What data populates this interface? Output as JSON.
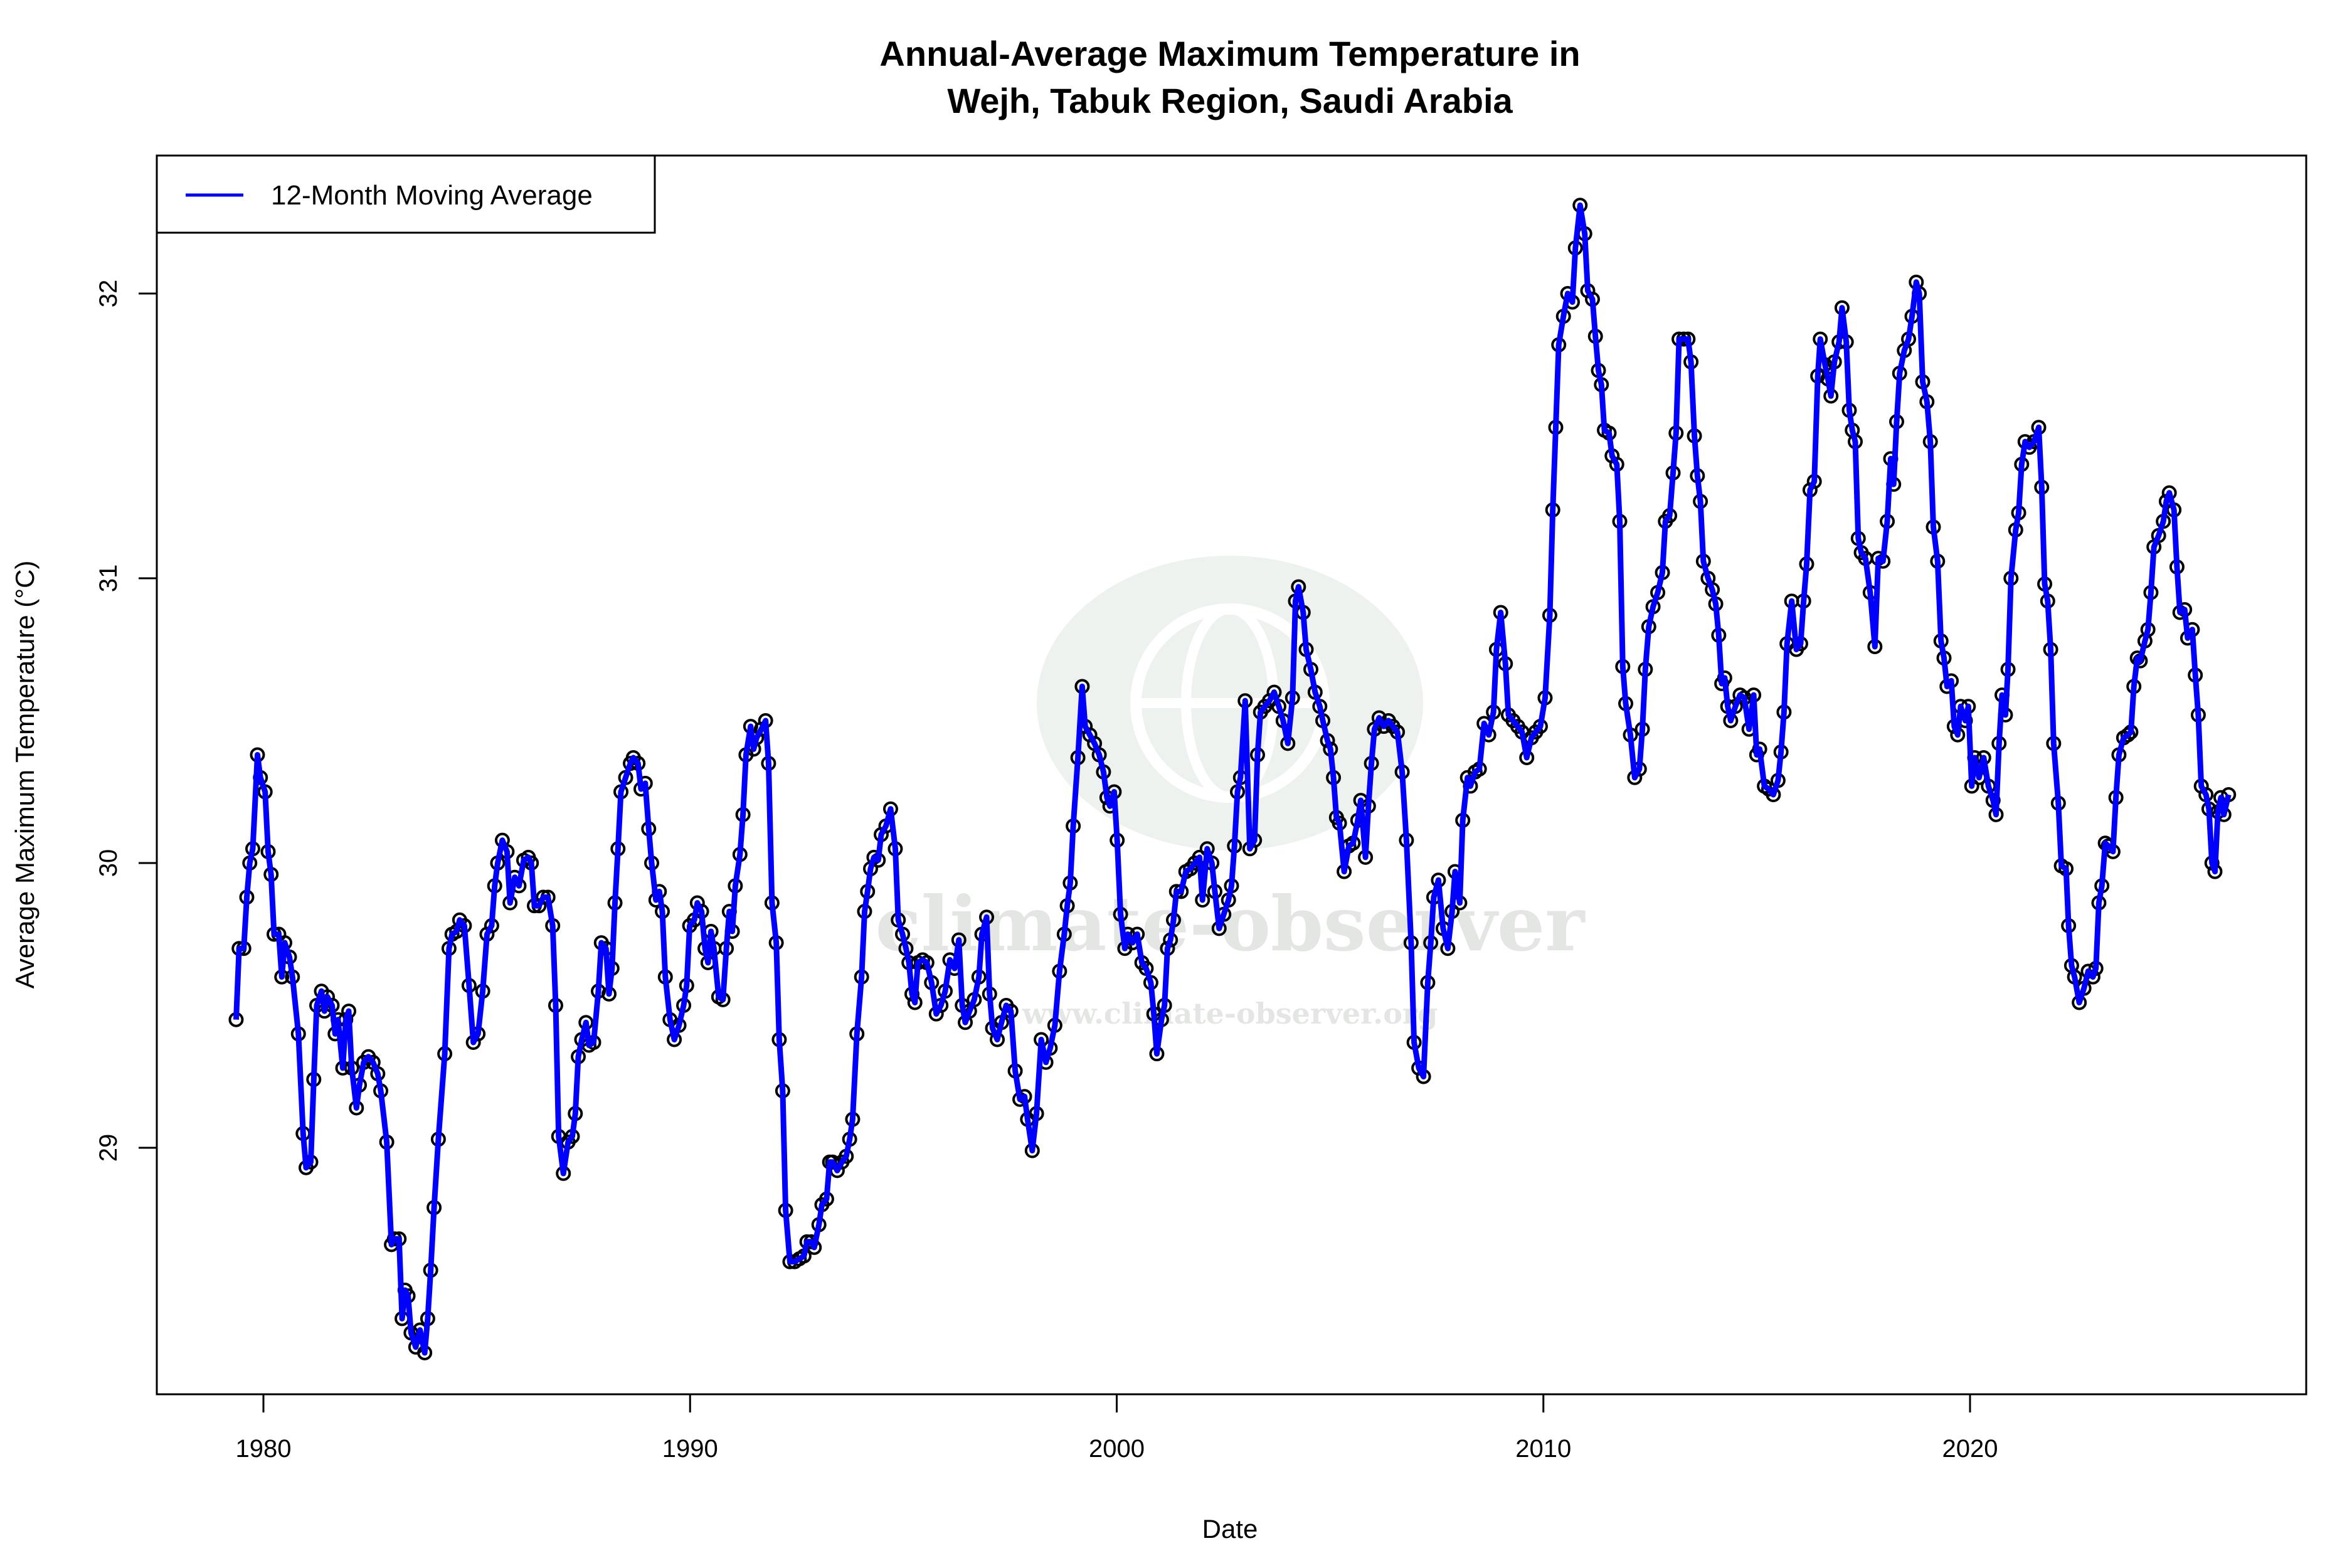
{
  "chart_data": {
    "type": "line",
    "title_line1": "Annual-Average Maximum Temperature in",
    "title_line2": "Wejh, Tabuk Region, Saudi Arabia",
    "xlabel": "Date",
    "ylabel": "Average Maximum Temperature (°C)",
    "xlim": [
      1977.5,
      2027.9
    ],
    "ylim": [
      28.1,
      32.5
    ],
    "x_ticks": [
      1980,
      1990,
      2000,
      2010,
      2020
    ],
    "y_ticks": [
      29,
      30,
      31,
      32
    ],
    "grid": false,
    "legend": {
      "position": "top-left",
      "entries": [
        "12-Month Moving Average"
      ]
    },
    "series": [
      {
        "name": "12-Month Moving Average",
        "color": "#0000ff",
        "marker": "open-circle",
        "x": [
          1979.36,
          1979.43,
          1979.54,
          1979.61,
          1979.68,
          1979.75,
          1979.86,
          1979.93,
          1980.04,
          1980.11,
          1980.18,
          1980.25,
          1980.36,
          1980.43,
          1980.5,
          1980.61,
          1980.68,
          1980.82,
          1980.93,
          1981.0,
          1981.11,
          1981.18,
          1981.25,
          1981.36,
          1981.43,
          1981.5,
          1981.61,
          1981.68,
          1981.75,
          1981.86,
          1981.93,
          1982.0,
          1982.07,
          1982.18,
          1982.25,
          1982.35,
          1982.46,
          1982.57,
          1982.68,
          1982.75,
          1982.89,
          1983.0,
          1983.07,
          1983.18,
          1983.25,
          1983.32,
          1983.39,
          1983.46,
          1983.57,
          1983.67,
          1983.78,
          1983.85,
          1983.92,
          1984.0,
          1984.1,
          1984.25,
          1984.35,
          1984.42,
          1984.53,
          1984.6,
          1984.71,
          1984.82,
          1984.92,
          1985.03,
          1985.14,
          1985.24,
          1985.35,
          1985.42,
          1985.49,
          1985.6,
          1985.71,
          1985.78,
          1985.89,
          1985.99,
          1986.1,
          1986.21,
          1986.28,
          1986.35,
          1986.46,
          1986.56,
          1986.67,
          1986.78,
          1986.85,
          1986.92,
          1987.03,
          1987.14,
          1987.24,
          1987.31,
          1987.38,
          1987.46,
          1987.56,
          1987.63,
          1987.74,
          1987.85,
          1987.92,
          1988.03,
          1988.1,
          1988.17,
          1988.24,
          1988.31,
          1988.38,
          1988.49,
          1988.6,
          1988.67,
          1988.78,
          1988.85,
          1988.95,
          1989.03,
          1989.1,
          1989.2,
          1989.28,
          1989.35,
          1989.42,
          1989.53,
          1989.63,
          1989.74,
          1989.85,
          1989.92,
          1989.99,
          1990.1,
          1990.17,
          1990.27,
          1990.35,
          1990.42,
          1990.49,
          1990.56,
          1990.67,
          1990.77,
          1990.85,
          1990.92,
          1990.99,
          1991.06,
          1991.17,
          1991.24,
          1991.31,
          1991.42,
          1991.49,
          1991.56,
          1991.67,
          1991.77,
          1991.84,
          1991.92,
          1992.02,
          1992.09,
          1992.17,
          1992.24,
          1992.34,
          1992.45,
          1992.56,
          1992.67,
          1992.74,
          1992.84,
          1992.91,
          1993.02,
          1993.09,
          1993.2,
          1993.27,
          1993.34,
          1993.45,
          1993.56,
          1993.66,
          1993.74,
          1993.81,
          1993.91,
          1994.02,
          1994.09,
          1994.16,
          1994.23,
          1994.31,
          1994.41,
          1994.48,
          1994.59,
          1994.7,
          1994.81,
          1994.88,
          1994.98,
          1995.06,
          1995.13,
          1995.2,
          1995.27,
          1995.34,
          1995.45,
          1995.55,
          1995.66,
          1995.77,
          1995.88,
          1995.98,
          1996.09,
          1996.2,
          1996.3,
          1996.38,
          1996.45,
          1996.55,
          1996.66,
          1996.77,
          1996.84,
          1996.95,
          1997.02,
          1997.09,
          1997.2,
          1997.3,
          1997.41,
          1997.52,
          1997.62,
          1997.73,
          1997.84,
          1997.91,
          1998.02,
          1998.12,
          1998.23,
          1998.34,
          1998.44,
          1998.55,
          1998.66,
          1998.77,
          1998.84,
          1998.91,
          1998.98,
          1999.09,
          1999.19,
          1999.26,
          1999.37,
          1999.48,
          1999.59,
          1999.69,
          1999.77,
          1999.84,
          1999.94,
          2000.01,
          2000.09,
          2000.19,
          2000.26,
          2000.37,
          2000.48,
          2000.59,
          2000.69,
          2000.8,
          2000.87,
          2000.94,
          2001.05,
          2001.12,
          2001.19,
          2001.26,
          2001.33,
          2001.4,
          2001.51,
          2001.62,
          2001.73,
          2001.83,
          2001.94,
          2002.01,
          2002.12,
          2002.23,
          2002.3,
          2002.4,
          2002.51,
          2002.62,
          2002.69,
          2002.76,
          2002.83,
          2002.9,
          2003.01,
          2003.12,
          2003.23,
          2003.3,
          2003.37,
          2003.47,
          2003.58,
          2003.69,
          2003.8,
          2003.9,
          2004.01,
          2004.12,
          2004.19,
          2004.26,
          2004.37,
          2004.44,
          2004.55,
          2004.65,
          2004.76,
          2004.83,
          2004.94,
          2005.01,
          2005.08,
          2005.15,
          2005.22,
          2005.33,
          2005.44,
          2005.54,
          2005.65,
          2005.72,
          2005.83,
          2005.9,
          2005.97,
          2006.04,
          2006.15,
          2006.26,
          2006.37,
          2006.47,
          2006.58,
          2006.69,
          2006.79,
          2006.9,
          2006.97,
          2007.08,
          2007.19,
          2007.29,
          2007.36,
          2007.43,
          2007.54,
          2007.65,
          2007.76,
          2007.86,
          2007.93,
          2008.04,
          2008.11,
          2008.22,
          2008.29,
          2008.4,
          2008.5,
          2008.61,
          2008.72,
          2008.83,
          2008.9,
          2009.0,
          2009.11,
          2009.18,
          2009.29,
          2009.4,
          2009.5,
          2009.61,
          2009.72,
          2009.82,
          2009.93,
          2010.04,
          2010.15,
          2010.22,
          2010.29,
          2010.36,
          2010.47,
          2010.57,
          2010.68,
          2010.75,
          2010.86,
          2010.97,
          2011.04,
          2011.15,
          2011.22,
          2011.29,
          2011.36,
          2011.43,
          2011.54,
          2011.61,
          2011.72,
          2011.79,
          2011.86,
          2011.93,
          2012.04,
          2012.14,
          2012.25,
          2012.32,
          2012.39,
          2012.47,
          2012.57,
          2012.68,
          2012.79,
          2012.86,
          2012.96,
          2013.04,
          2013.11,
          2013.18,
          2013.29,
          2013.39,
          2013.46,
          2013.54,
          2013.61,
          2013.68,
          2013.75,
          2013.86,
          2013.96,
          2014.04,
          2014.11,
          2014.18,
          2014.25,
          2014.32,
          2014.39,
          2014.5,
          2014.61,
          2014.71,
          2014.82,
          2014.93,
          2015.0,
          2015.07,
          2015.18,
          2015.28,
          2015.39,
          2015.5,
          2015.57,
          2015.64,
          2015.71,
          2015.82,
          2015.93,
          2016.03,
          2016.1,
          2016.17,
          2016.25,
          2016.35,
          2016.43,
          2016.49,
          2016.6,
          2016.67,
          2016.74,
          2016.82,
          2016.93,
          2017.0,
          2017.1,
          2017.17,
          2017.24,
          2017.31,
          2017.38,
          2017.45,
          2017.55,
          2017.66,
          2017.77,
          2017.85,
          2017.96,
          2018.06,
          2018.14,
          2018.21,
          2018.28,
          2018.35,
          2018.46,
          2018.56,
          2018.64,
          2018.74,
          2018.81,
          2018.89,
          2018.99,
          2019.07,
          2019.14,
          2019.24,
          2019.32,
          2019.39,
          2019.46,
          2019.56,
          2019.63,
          2019.71,
          2019.78,
          2019.89,
          2019.96,
          2020.04,
          2020.11,
          2020.21,
          2020.32,
          2020.43,
          2020.54,
          2020.61,
          2020.68,
          2020.75,
          2020.83,
          2020.89,
          2020.96,
          2021.07,
          2021.14,
          2021.21,
          2021.29,
          2021.39,
          2021.5,
          2021.61,
          2021.68,
          2021.75,
          2021.82,
          2021.89,
          2021.96,
          2022.07,
          2022.14,
          2022.25,
          2022.31,
          2022.38,
          2022.45,
          2022.56,
          2022.67,
          2022.77,
          2022.88,
          2022.95,
          2023.02,
          2023.09,
          2023.17,
          2023.24,
          2023.35,
          2023.42,
          2023.49,
          2023.6,
          2023.7,
          2023.77,
          2023.84,
          2023.92,
          2023.99,
          2024.1,
          2024.17,
          2024.24,
          2024.31,
          2024.42,
          2024.53,
          2024.6,
          2024.67,
          2024.78,
          2024.85,
          2024.92,
          2025.03,
          2025.1,
          2025.21,
          2025.28,
          2025.35,
          2025.42,
          2025.53,
          2025.6,
          2025.67,
          2025.74,
          2025.81,
          2025.88,
          2025.95,
          2026.06
        ],
        "y": [
          29.45,
          29.7,
          29.7,
          29.88,
          30.0,
          30.05,
          30.38,
          30.3,
          30.25,
          30.04,
          29.96,
          29.75,
          29.75,
          29.6,
          29.72,
          29.67,
          29.6,
          29.4,
          29.05,
          28.93,
          28.95,
          29.24,
          29.5,
          29.55,
          29.48,
          29.53,
          29.5,
          29.4,
          29.45,
          29.28,
          29.45,
          29.48,
          29.28,
          29.14,
          29.22,
          29.3,
          29.32,
          29.3,
          29.26,
          29.2,
          29.02,
          28.66,
          28.68,
          28.68,
          28.4,
          28.5,
          28.48,
          28.35,
          28.3,
          28.36,
          28.28,
          28.4,
          28.57,
          28.79,
          29.03,
          29.33,
          29.7,
          29.75,
          29.76,
          29.8,
          29.78,
          29.57,
          29.37,
          29.4,
          29.55,
          29.75,
          29.78,
          29.92,
          30.0,
          30.08,
          30.04,
          29.86,
          29.95,
          29.92,
          30.01,
          30.02,
          30.0,
          29.85,
          29.85,
          29.88,
          29.88,
          29.78,
          29.5,
          29.04,
          28.91,
          29.02,
          29.04,
          29.12,
          29.32,
          29.38,
          29.44,
          29.36,
          29.37,
          29.55,
          29.72,
          29.7,
          29.54,
          29.63,
          29.86,
          30.05,
          30.25,
          30.3,
          30.35,
          30.37,
          30.35,
          30.26,
          30.28,
          30.12,
          30.0,
          29.87,
          29.9,
          29.83,
          29.6,
          29.45,
          29.38,
          29.43,
          29.5,
          29.57,
          29.78,
          29.8,
          29.86,
          29.83,
          29.7,
          29.65,
          29.76,
          29.7,
          29.53,
          29.52,
          29.7,
          29.83,
          29.76,
          29.92,
          30.03,
          30.17,
          30.38,
          30.48,
          30.4,
          30.44,
          30.47,
          30.5,
          30.35,
          29.86,
          29.72,
          29.38,
          29.2,
          28.78,
          28.6,
          28.6,
          28.61,
          28.62,
          28.67,
          28.67,
          28.65,
          28.73,
          28.8,
          28.82,
          28.95,
          28.95,
          28.92,
          28.95,
          28.97,
          29.03,
          29.1,
          29.4,
          29.6,
          29.83,
          29.9,
          29.98,
          30.02,
          30.01,
          30.1,
          30.13,
          30.19,
          30.05,
          29.8,
          29.75,
          29.7,
          29.65,
          29.54,
          29.51,
          29.65,
          29.66,
          29.65,
          29.58,
          29.47,
          29.5,
          29.55,
          29.66,
          29.63,
          29.73,
          29.5,
          29.44,
          29.48,
          29.52,
          29.6,
          29.75,
          29.81,
          29.54,
          29.42,
          29.38,
          29.44,
          29.5,
          29.48,
          29.27,
          29.17,
          29.18,
          29.1,
          28.99,
          29.12,
          29.38,
          29.3,
          29.35,
          29.43,
          29.62,
          29.75,
          29.85,
          29.93,
          30.13,
          30.37,
          30.62,
          30.48,
          30.45,
          30.42,
          30.38,
          30.32,
          30.23,
          30.2,
          30.25,
          30.08,
          29.82,
          29.7,
          29.75,
          29.72,
          29.75,
          29.65,
          29.63,
          29.58,
          29.47,
          29.33,
          29.45,
          29.5,
          29.7,
          29.73,
          29.8,
          29.9,
          29.9,
          29.97,
          29.98,
          30.0,
          30.02,
          29.87,
          30.05,
          30.0,
          29.9,
          29.77,
          29.82,
          29.87,
          29.92,
          30.06,
          30.25,
          30.3,
          30.57,
          30.05,
          30.08,
          30.38,
          30.53,
          30.55,
          30.57,
          30.6,
          30.55,
          30.5,
          30.42,
          30.58,
          30.92,
          30.97,
          30.88,
          30.75,
          30.68,
          30.6,
          30.55,
          30.5,
          30.43,
          30.4,
          30.3,
          30.16,
          30.14,
          29.97,
          30.06,
          30.07,
          30.15,
          30.22,
          30.02,
          30.2,
          30.35,
          30.47,
          30.51,
          30.48,
          30.5,
          30.48,
          30.46,
          30.32,
          30.08,
          29.72,
          29.37,
          29.28,
          29.25,
          29.58,
          29.72,
          29.88,
          29.94,
          29.77,
          29.7,
          29.83,
          29.97,
          29.86,
          30.15,
          30.3,
          30.27,
          30.32,
          30.33,
          30.49,
          30.45,
          30.53,
          30.75,
          30.88,
          30.7,
          30.52,
          30.5,
          30.48,
          30.46,
          30.37,
          30.44,
          30.46,
          30.48,
          30.58,
          30.87,
          31.24,
          31.53,
          31.82,
          31.92,
          32.0,
          31.97,
          32.16,
          32.31,
          32.21,
          32.01,
          31.98,
          31.85,
          31.73,
          31.68,
          31.52,
          31.51,
          31.43,
          31.4,
          31.2,
          30.69,
          30.56,
          30.45,
          30.3,
          30.33,
          30.47,
          30.68,
          30.83,
          30.9,
          30.95,
          31.02,
          31.2,
          31.22,
          31.37,
          31.51,
          31.84,
          31.84,
          31.84,
          31.76,
          31.5,
          31.36,
          31.27,
          31.06,
          31.0,
          30.96,
          30.91,
          30.8,
          30.63,
          30.65,
          30.55,
          30.5,
          30.55,
          30.59,
          30.58,
          30.47,
          30.59,
          30.38,
          30.4,
          30.27,
          30.26,
          30.24,
          30.29,
          30.39,
          30.53,
          30.77,
          30.92,
          30.75,
          30.77,
          30.92,
          31.05,
          31.31,
          31.34,
          31.71,
          31.84,
          31.75,
          31.7,
          31.64,
          31.76,
          31.83,
          31.95,
          31.83,
          31.59,
          31.52,
          31.48,
          31.14,
          31.09,
          31.07,
          30.95,
          30.76,
          31.07,
          31.06,
          31.2,
          31.42,
          31.33,
          31.55,
          31.72,
          31.8,
          31.84,
          31.92,
          32.04,
          32.0,
          31.69,
          31.62,
          31.48,
          31.18,
          31.06,
          30.78,
          30.72,
          30.62,
          30.64,
          30.48,
          30.45,
          30.55,
          30.5,
          30.55,
          30.27,
          30.37,
          30.3,
          30.37,
          30.27,
          30.22,
          30.17,
          30.42,
          30.59,
          30.52,
          30.68,
          31.0,
          31.17,
          31.23,
          31.4,
          31.48,
          31.46,
          31.48,
          31.53,
          31.32,
          30.98,
          30.92,
          30.75,
          30.42,
          30.21,
          29.99,
          29.98,
          29.78,
          29.64,
          29.6,
          29.51,
          29.56,
          29.62,
          29.6,
          29.63,
          29.86,
          29.92,
          30.07,
          30.06,
          30.04,
          30.23,
          30.38,
          30.44,
          30.45,
          30.46,
          30.62,
          30.72,
          30.71,
          30.78,
          30.82,
          30.95,
          31.11,
          31.15,
          31.2,
          31.27,
          31.3,
          31.24,
          31.04,
          30.88,
          30.89,
          30.79,
          30.82,
          30.66,
          30.52,
          30.27,
          30.24,
          30.19,
          30.0,
          29.97,
          30.18,
          30.23,
          30.17,
          30.24
        ]
      }
    ]
  },
  "watermark": {
    "name": "climate-observer",
    "url": "www.climate-observer.org"
  }
}
